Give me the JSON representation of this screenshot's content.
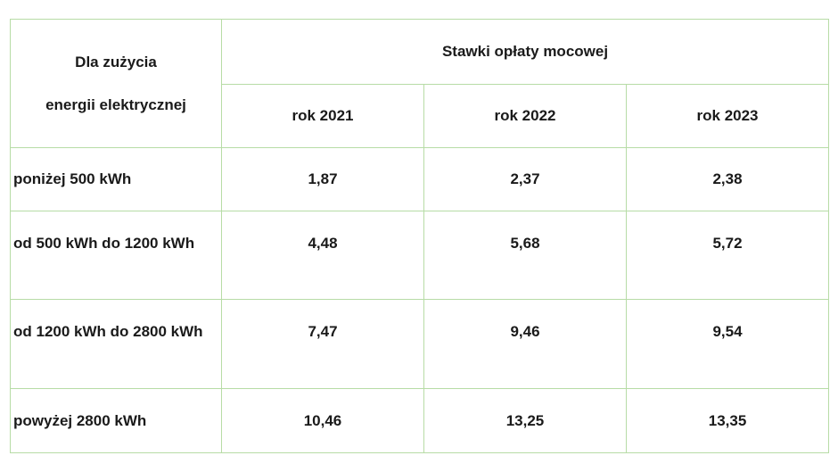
{
  "table": {
    "header": {
      "row_label_line1": "Dla zużycia",
      "row_label_line2": "energii elektrycznej",
      "group_title": "Stawki opłaty mocowej",
      "years": [
        "rok 2021",
        "rok 2022",
        "rok 2023"
      ]
    },
    "rows": [
      {
        "label": "poniżej 500 kWh",
        "values": [
          "1,87",
          "2,37",
          "2,38"
        ]
      },
      {
        "label": "od 500 kWh do 1200 kWh",
        "values": [
          "4,48",
          "5,68",
          "5,72"
        ]
      },
      {
        "label": "od 1200 kWh do 2800 kWh",
        "values": [
          "7,47",
          "9,46",
          "9,54"
        ]
      },
      {
        "label": "powyżej 2800 kWh",
        "values": [
          "10,46",
          "13,25",
          "13,35"
        ]
      }
    ]
  }
}
